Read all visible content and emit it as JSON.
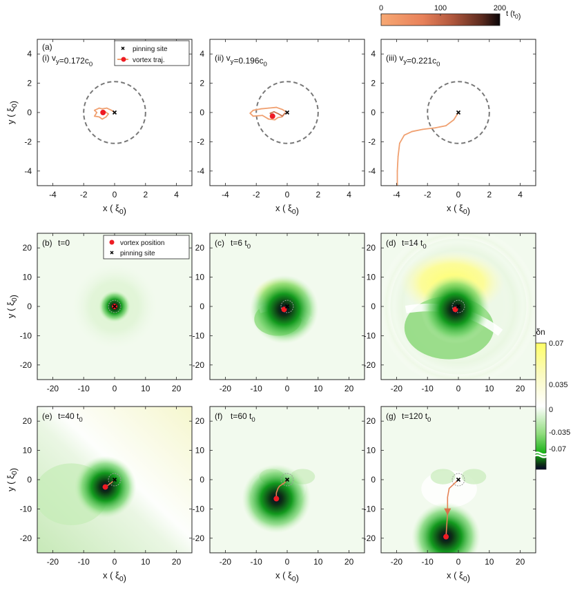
{
  "figure": {
    "time_colorbar": {
      "label": "t (t",
      "label_sub": "0",
      "label_close": ")",
      "ticks": [
        "0",
        "100",
        "200"
      ],
      "range": [
        0,
        200
      ],
      "colors": [
        "#f7a873",
        "#e8815a",
        "#b0573d",
        "#5a2a1e",
        "#0a0508"
      ]
    },
    "density_colorbar": {
      "label": "δn",
      "ticks": [
        "0.07",
        "0.035",
        "0",
        "-0.035",
        "-0.07"
      ],
      "tick_values": [
        0.07,
        0.035,
        0,
        -0.035,
        -0.07
      ],
      "range": [
        -0.07,
        0.07
      ],
      "colors": {
        "top": "#ffff66",
        "mid": "#ffffff",
        "low": "#12b012",
        "deep": "#0d3015",
        "darkest": "#06072a"
      }
    }
  },
  "chart_data": [
    {
      "id": "a",
      "type": "line",
      "panel_label": "(a)",
      "title": "(i) v",
      "title_sub": "y",
      "title_rest": "=0.172c",
      "title_sub2": "0",
      "xlabel": "x ( ξ",
      "xlabel_sub": "0",
      "xlabel_close": ")",
      "ylabel": "y ( ξ",
      "ylabel_sub": "0",
      "ylabel_close": ")",
      "xlim": [
        -5,
        5
      ],
      "ylim": [
        -5,
        5
      ],
      "xticks": [
        -4,
        -2,
        0,
        2,
        4
      ],
      "yticks": [
        -4,
        -2,
        0,
        2,
        4
      ],
      "legend": [
        "pinning site",
        "vortex traj."
      ],
      "pinning_site": [
        0,
        0
      ],
      "pinning_radius": 2,
      "vortex_position": [
        -0.75,
        0
      ],
      "trajectory": [
        [
          0,
          0
        ],
        [
          -0.2,
          0.15
        ],
        [
          -0.5,
          0.3
        ],
        [
          -0.8,
          0.25
        ],
        [
          -1.0,
          0.3
        ],
        [
          -1.3,
          0.15
        ],
        [
          -1.15,
          0
        ],
        [
          -1.3,
          -0.25
        ],
        [
          -1.0,
          -0.3
        ],
        [
          -0.8,
          -0.45
        ],
        [
          -0.55,
          -0.3
        ],
        [
          -0.4,
          -0.1
        ],
        [
          -0.6,
          0.05
        ],
        [
          -0.75,
          0
        ]
      ]
    },
    {
      "id": "ii",
      "type": "line",
      "panel_label": "",
      "title": "(ii) v",
      "title_sub": "y",
      "title_rest": "=0.196c",
      "title_sub2": "0",
      "xlabel": "x ( ξ",
      "xlabel_sub": "0",
      "xlabel_close": ")",
      "xlim": [
        -5,
        5
      ],
      "ylim": [
        -5,
        5
      ],
      "xticks": [
        -4,
        -2,
        0,
        2,
        4
      ],
      "yticks": [
        -4,
        -2,
        0,
        2,
        4
      ],
      "pinning_site": [
        0,
        0
      ],
      "pinning_radius": 2,
      "vortex_position": [
        -0.95,
        -0.25
      ],
      "trajectory": [
        [
          0,
          0
        ],
        [
          -0.3,
          0.2
        ],
        [
          -0.7,
          0.35
        ],
        [
          -1.2,
          0.3
        ],
        [
          -1.7,
          0.25
        ],
        [
          -2.2,
          0.15
        ],
        [
          -2.4,
          -0.05
        ],
        [
          -2.2,
          -0.25
        ],
        [
          -1.6,
          -0.2
        ],
        [
          -1.2,
          -0.45
        ],
        [
          -0.8,
          -0.5
        ],
        [
          -0.6,
          -0.35
        ],
        [
          -0.35,
          -0.3
        ],
        [
          -0.15,
          -0.05
        ],
        [
          -0.3,
          -0.25
        ],
        [
          -0.55,
          -0.1
        ],
        [
          -0.85,
          0.05
        ],
        [
          -1.1,
          -0.05
        ],
        [
          -0.95,
          -0.25
        ]
      ]
    },
    {
      "id": "iii",
      "type": "line",
      "panel_label": "",
      "title": "(iii) v",
      "title_sub": "y",
      "title_rest": "=0.221c",
      "title_sub2": "0",
      "xlabel": "x ( ξ",
      "xlabel_sub": "0",
      "xlabel_close": ")",
      "xlim": [
        -5,
        5
      ],
      "ylim": [
        -5,
        5
      ],
      "xticks": [
        -4,
        -2,
        0,
        2,
        4
      ],
      "yticks": [
        -4,
        -2,
        0,
        2,
        4
      ],
      "pinning_site": [
        0,
        0
      ],
      "pinning_radius": 2,
      "trajectory": [
        [
          0,
          0
        ],
        [
          -0.3,
          -0.5
        ],
        [
          -0.8,
          -0.9
        ],
        [
          -1.5,
          -1.05
        ],
        [
          -2.3,
          -1.15
        ],
        [
          -3.0,
          -1.3
        ],
        [
          -3.5,
          -1.55
        ],
        [
          -3.8,
          -2.1
        ],
        [
          -3.9,
          -3.0
        ],
        [
          -3.95,
          -4.0
        ],
        [
          -3.95,
          -5.0
        ]
      ]
    },
    {
      "id": "b",
      "type": "heatmap",
      "panel_label": "(b)",
      "time_label": "t=0",
      "time_sub": "",
      "xlim": [
        -25,
        25
      ],
      "ylim": [
        -25,
        25
      ],
      "xticks": [
        -20,
        -10,
        0,
        10,
        20
      ],
      "yticks": [
        -20,
        -10,
        0,
        10,
        20
      ],
      "ylabel": "y ( ξ",
      "ylabel_sub": "0",
      "ylabel_close": ")",
      "legend": [
        "vortex position",
        "pinning site"
      ],
      "vortex": [
        0,
        0
      ],
      "pinning_site": [
        0,
        0
      ],
      "depletion_strength": 0.55,
      "wave_strength": 0,
      "tail_strength": 0,
      "trajectory": []
    },
    {
      "id": "c",
      "type": "heatmap",
      "panel_label": "(c)",
      "time_label": "t=6 t",
      "time_sub": "0",
      "xlim": [
        -25,
        25
      ],
      "ylim": [
        -25,
        25
      ],
      "xticks": [
        -20,
        -10,
        0,
        10,
        20
      ],
      "yticks": [
        -20,
        -10,
        0,
        10,
        20
      ],
      "vortex": [
        -1,
        -1
      ],
      "pinning_site": [
        0,
        0
      ],
      "depletion_strength": 1.0,
      "wave_strength": 0.5,
      "tail_strength": 0,
      "trajectory": []
    },
    {
      "id": "d",
      "type": "heatmap",
      "panel_label": "(d)",
      "time_label": "t=14 t",
      "time_sub": "0",
      "xlim": [
        -25,
        25
      ],
      "ylim": [
        -25,
        25
      ],
      "xticks": [
        -20,
        -10,
        0,
        10,
        20
      ],
      "yticks": [
        -20,
        -10,
        0,
        10,
        20
      ],
      "vortex": [
        -1,
        -1
      ],
      "pinning_site": [
        0,
        0
      ],
      "depletion_strength": 1.0,
      "wave_strength": 1.0,
      "tail_strength": 0,
      "trajectory": []
    },
    {
      "id": "e",
      "type": "heatmap",
      "panel_label": "(e)",
      "time_label": "t=40 t",
      "time_sub": "0",
      "xlim": [
        -25,
        25
      ],
      "ylim": [
        -25,
        25
      ],
      "xticks": [
        -20,
        -10,
        0,
        10,
        20
      ],
      "yticks": [
        -20,
        -10,
        0,
        10,
        20
      ],
      "xlabel": "x ( ξ",
      "xlabel_sub": "0",
      "xlabel_close": ")",
      "ylabel": "y ( ξ",
      "ylabel_sub": "0",
      "ylabel_close": ")",
      "vortex": [
        -3,
        -2.5
      ],
      "pinning_site": [
        0,
        0
      ],
      "depletion_strength": 0.9,
      "wave_strength": 0,
      "tail_strength": 0.6,
      "trajectory": [
        [
          0,
          0
        ],
        [
          -1,
          -1
        ],
        [
          -2,
          -1.8
        ],
        [
          -3,
          -2.5
        ]
      ]
    },
    {
      "id": "f",
      "type": "heatmap",
      "panel_label": "(f)",
      "time_label": "t=60 t",
      "time_sub": "0",
      "xlim": [
        -25,
        25
      ],
      "ylim": [
        -25,
        25
      ],
      "xticks": [
        -20,
        -10,
        0,
        10,
        20
      ],
      "yticks": [
        -20,
        -10,
        0,
        10,
        20
      ],
      "xlabel": "x ( ξ",
      "xlabel_sub": "0",
      "xlabel_close": ")",
      "vortex": [
        -3.5,
        -6.5
      ],
      "pinning_site": [
        0,
        0
      ],
      "depletion_strength": 1.0,
      "wave_strength": 0,
      "tail_strength": 0.3,
      "trajectory": [
        [
          0,
          0
        ],
        [
          -1,
          -1.2
        ],
        [
          -2.5,
          -2.2
        ],
        [
          -3,
          -3
        ],
        [
          -3.5,
          -4.5
        ],
        [
          -3.5,
          -6.5
        ]
      ]
    },
    {
      "id": "g",
      "type": "heatmap",
      "panel_label": "(g)",
      "time_label": "t=120 t",
      "time_sub": "0",
      "xlim": [
        -25,
        25
      ],
      "ylim": [
        -25,
        25
      ],
      "xticks": [
        -20,
        -10,
        0,
        10,
        20
      ],
      "yticks": [
        -20,
        -10,
        0,
        10,
        20
      ],
      "xlabel": "x ( ξ",
      "xlabel_sub": "0",
      "xlabel_close": ")",
      "vortex": [
        -4,
        -19.5
      ],
      "pinning_site": [
        0,
        0
      ],
      "depletion_strength": 1.0,
      "wave_strength": 0,
      "tail_strength": 0.2,
      "trajectory": [
        [
          0,
          0
        ],
        [
          -1.5,
          -1.5
        ],
        [
          -3,
          -3
        ],
        [
          -3.5,
          -6
        ],
        [
          -3.5,
          -10
        ],
        [
          -3.6,
          -13
        ],
        [
          -3.8,
          -16
        ],
        [
          -4,
          -19.5
        ]
      ],
      "arrow_at": [
        -3.5,
        -11
      ]
    }
  ]
}
